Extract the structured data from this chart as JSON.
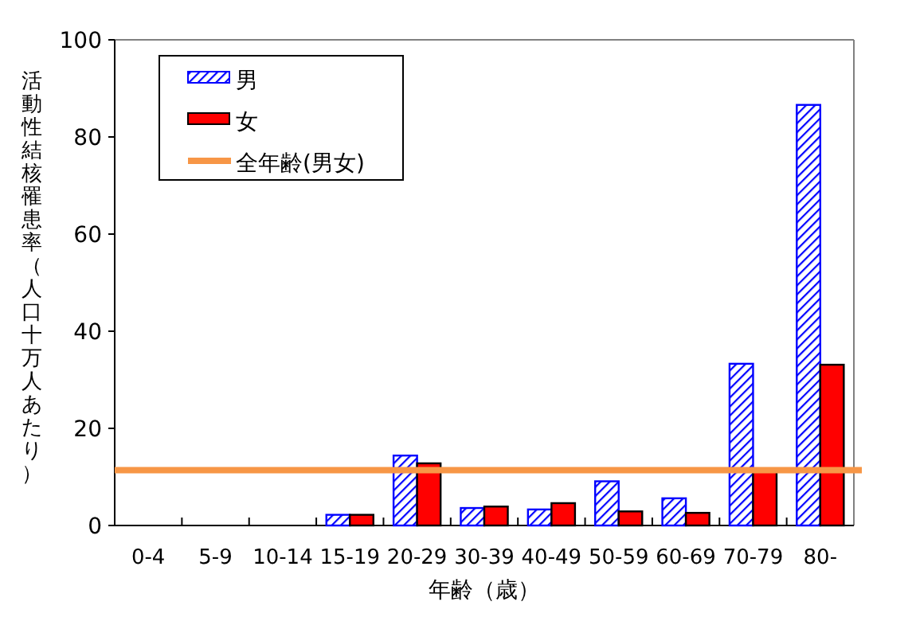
{
  "chart_data": {
    "type": "bar",
    "xlabel": "年齢（歳）",
    "ylabel": "活動性結核罹患率（人口十万人あたり）",
    "categories": [
      "0-4",
      "5-9",
      "10-14",
      "15-19",
      "20-29",
      "30-39",
      "40-49",
      "50-59",
      "60-69",
      "70-79",
      "80-"
    ],
    "series": [
      {
        "name": "男",
        "color": "#0000ff",
        "values": [
          0,
          0,
          0,
          2.2,
          14.4,
          3.6,
          3.3,
          9.1,
          5.6,
          33.3,
          86.6
        ]
      },
      {
        "name": "女",
        "color": "#ff0000",
        "values": [
          0,
          0,
          0,
          2.2,
          12.8,
          3.9,
          4.6,
          2.9,
          2.6,
          11.4,
          33.1
        ]
      }
    ],
    "ref_lines": [
      {
        "axis": "y",
        "value": 11.4,
        "label": "全年齢(男女)",
        "color": "#f79646"
      }
    ],
    "ylim": [
      0,
      100
    ],
    "yticks": [
      0,
      20,
      40,
      60,
      80,
      100
    ],
    "legend": "top left",
    "grid": false
  }
}
